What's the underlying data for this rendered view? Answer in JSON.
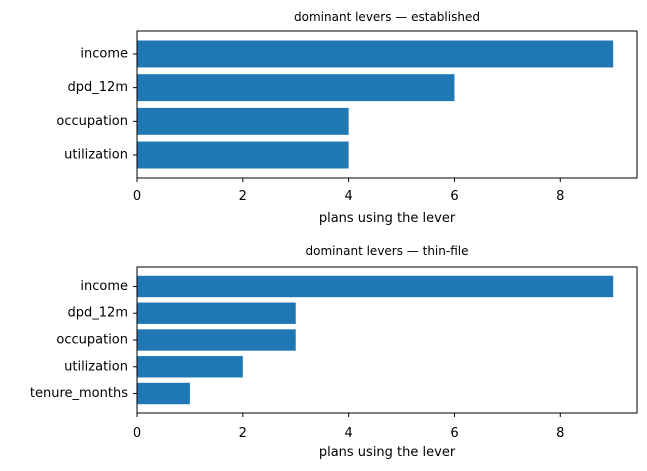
{
  "chart_data": [
    {
      "type": "bar",
      "orientation": "horizontal",
      "title": "dominant levers — established",
      "xlabel": "plans using the lever",
      "ylabel": "",
      "categories": [
        "income",
        "dpd_12m",
        "occupation",
        "utilization"
      ],
      "values": [
        9,
        6,
        4,
        4
      ],
      "xlim": [
        0,
        9.45
      ],
      "xticks": [
        0,
        2,
        4,
        6,
        8
      ],
      "color": "#1f77b4",
      "grid": false
    },
    {
      "type": "bar",
      "orientation": "horizontal",
      "title": "dominant levers — thin-file",
      "xlabel": "plans using the lever",
      "ylabel": "",
      "categories": [
        "income",
        "dpd_12m",
        "occupation",
        "utilization",
        "tenure_months"
      ],
      "values": [
        9,
        3,
        3,
        2,
        1
      ],
      "xlim": [
        0,
        9.45
      ],
      "xticks": [
        0,
        2,
        4,
        6,
        8
      ],
      "color": "#1f77b4",
      "grid": false
    }
  ]
}
